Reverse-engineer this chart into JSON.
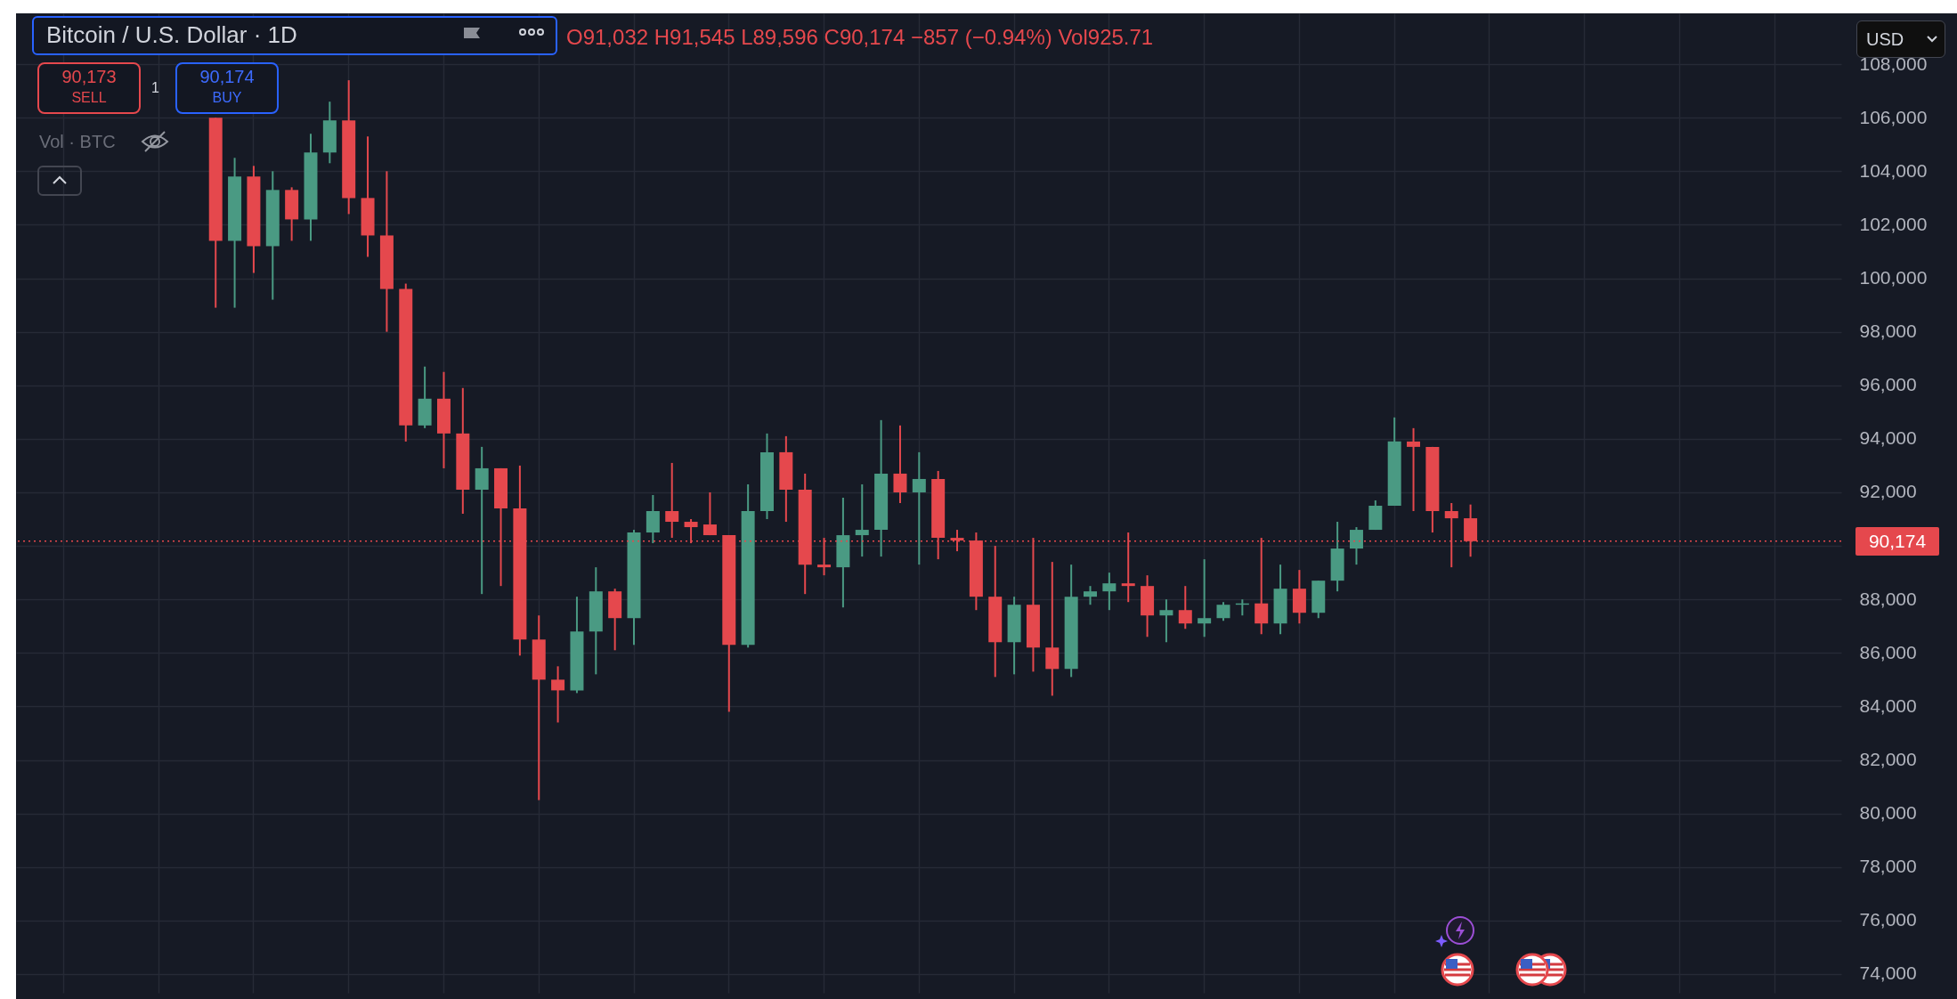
{
  "chart_data": {
    "type": "candlestick",
    "title": "Bitcoin / U.S. Dollar · 1D",
    "subtitle": "O91,032 H91,545 L89,596 C90,174 −857 (−0.94%) Vol925.71",
    "annotations": [
      "90,173",
      "SELL",
      "1",
      "90,174",
      "BUY",
      "Vol · BTC",
      "USD"
    ],
    "categories": [
      null,
      null,
      null,
      null,
      null,
      null,
      null,
      null,
      null,
      null,
      null,
      null,
      null,
      null,
      null,
      null,
      null,
      null,
      null,
      null,
      null,
      null,
      null,
      null,
      null,
      null,
      null,
      null,
      null,
      null,
      null,
      null,
      null,
      null,
      null,
      null,
      null,
      null,
      null,
      null,
      null,
      null,
      null,
      null,
      null,
      null,
      null,
      null,
      null,
      null,
      null,
      null,
      null,
      null,
      null,
      null,
      null,
      null,
      null,
      null,
      null,
      null,
      null,
      null,
      null,
      null,
      null,
      null,
      null,
      null,
      null,
      null,
      null,
      null,
      null,
      null,
      null,
      null,
      null,
      null,
      null,
      null,
      null,
      null,
      null,
      null,
      null,
      null,
      null,
      null,
      null,
      null,
      null,
      null,
      null,
      null
    ],
    "ohlc": [
      null,
      null,
      null,
      null,
      null,
      null,
      null,
      null,
      null,
      null,
      [
        106000,
        106000,
        98900,
        101400
      ],
      [
        101400,
        104500,
        98900,
        103800
      ],
      [
        103800,
        104200,
        100200,
        101200
      ],
      [
        101200,
        104000,
        99200,
        103300
      ],
      [
        103300,
        103400,
        101400,
        102200
      ],
      [
        102200,
        105400,
        101400,
        104700
      ],
      [
        104700,
        106600,
        104300,
        105900
      ],
      [
        105900,
        107400,
        102400,
        103000
      ],
      [
        103000,
        105300,
        100800,
        101600
      ],
      [
        101600,
        104000,
        98000,
        99600
      ],
      [
        99600,
        99800,
        93900,
        94500
      ],
      [
        94500,
        96700,
        94400,
        95500
      ],
      [
        95500,
        96500,
        92900,
        94200
      ],
      [
        94200,
        95900,
        91200,
        92100
      ],
      [
        92100,
        93700,
        88200,
        92900
      ],
      [
        92900,
        92900,
        88500,
        91400
      ],
      [
        91400,
        93000,
        85900,
        86500
      ],
      [
        86500,
        87400,
        80500,
        85000
      ],
      [
        85000,
        85500,
        83400,
        84600
      ],
      [
        84600,
        88100,
        84500,
        86800
      ],
      [
        86800,
        89200,
        85200,
        88300
      ],
      [
        88300,
        88400,
        86100,
        87300
      ],
      [
        87300,
        90600,
        86300,
        90500
      ],
      [
        90500,
        91900,
        90100,
        91300
      ],
      [
        91300,
        93100,
        90300,
        90900
      ],
      [
        90900,
        91000,
        90100,
        90700
      ],
      [
        90800,
        92000,
        90400,
        90400
      ],
      [
        90400,
        90400,
        83800,
        86300
      ],
      [
        86300,
        92300,
        86200,
        91300
      ],
      [
        91300,
        94200,
        91000,
        93500
      ],
      [
        93500,
        94100,
        90900,
        92100
      ],
      [
        92100,
        92700,
        88200,
        89300
      ],
      [
        89300,
        90300,
        88900,
        89200
      ],
      [
        89200,
        91800,
        87700,
        90400
      ],
      [
        90400,
        92300,
        89600,
        90600
      ],
      [
        90600,
        94700,
        89600,
        92700
      ],
      [
        92700,
        94500,
        91600,
        92000
      ],
      [
        92000,
        93500,
        89300,
        92500
      ],
      [
        92500,
        92800,
        89500,
        90300
      ],
      [
        90300,
        90600,
        89800,
        90200
      ],
      [
        90200,
        90500,
        87600,
        88100
      ],
      [
        88100,
        90000,
        85100,
        86400
      ],
      [
        86400,
        88100,
        85200,
        87800
      ],
      [
        87800,
        90300,
        85300,
        86200
      ],
      [
        86200,
        89400,
        84400,
        85400
      ],
      [
        85400,
        89300,
        85100,
        88100
      ],
      [
        88100,
        88500,
        87800,
        88300
      ],
      [
        88300,
        89000,
        87600,
        88600
      ],
      [
        88600,
        90500,
        87900,
        88500
      ],
      [
        88500,
        88900,
        86600,
        87400
      ],
      [
        87400,
        88000,
        86400,
        87600
      ],
      [
        87600,
        88500,
        86900,
        87100
      ],
      [
        87100,
        89500,
        86600,
        87300
      ],
      [
        87300,
        87900,
        87200,
        87800
      ],
      [
        87800,
        88000,
        87400,
        87850
      ],
      [
        87850,
        90300,
        86700,
        87100
      ],
      [
        87100,
        89300,
        86700,
        88400
      ],
      [
        88400,
        89100,
        87100,
        87500
      ],
      [
        87500,
        88700,
        87300,
        88700
      ],
      [
        88700,
        90900,
        88300,
        89900
      ],
      [
        89900,
        90700,
        89300,
        90600
      ],
      [
        90600,
        91700,
        90600,
        91500
      ],
      [
        91500,
        94800,
        91500,
        93900
      ],
      [
        93900,
        94400,
        91300,
        93700
      ],
      [
        93700,
        93700,
        90500,
        91300
      ],
      [
        91300,
        91600,
        89200,
        91031
      ],
      [
        91032,
        91545,
        89596,
        90174
      ],
      null,
      null,
      null,
      null,
      null,
      null,
      null,
      null,
      null,
      null,
      null,
      null,
      null,
      null,
      null,
      null,
      null,
      null,
      null
    ],
    "colors": [
      null,
      null,
      null,
      null,
      null,
      null,
      null,
      null,
      null,
      null,
      "#e5484d",
      "#4a9a83",
      "#e5484d",
      "#4a9a83",
      "#e5484d",
      "#4a9a83",
      "#4a9a83",
      "#e5484d",
      "#e5484d",
      "#e5484d",
      "#e5484d",
      "#4a9a83",
      "#e5484d",
      "#e5484d",
      "#4a9a83",
      "#e5484d",
      "#e5484d",
      "#e5484d",
      "#e5484d",
      "#4a9a83",
      "#4a9a83",
      "#e5484d",
      "#4a9a83",
      "#4a9a83",
      "#e5484d",
      "#e5484d",
      "#e5484d",
      "#e5484d",
      "#4a9a83",
      "#4a9a83",
      "#e5484d",
      "#e5484d",
      "#e5484d",
      "#4a9a83",
      "#4a9a83",
      "#4a9a83",
      "#e5484d",
      "#4a9a83",
      "#e5484d",
      "#e5484d",
      "#e5484d",
      "#e5484d",
      "#4a9a83",
      "#e5484d",
      "#e5484d",
      "#4a9a83",
      "#4a9a83",
      "#4a9a83",
      "#e5484d",
      "#e5484d",
      "#4a9a83",
      "#e5484d",
      "#4a9a83",
      "#4a9a83",
      "#4a9a83",
      "#e5484d",
      "#4a9a83",
      "#e5484d",
      "#4a9a83",
      "#4a9a83",
      "#4a9a83",
      "#4a9a83",
      "#4a9a83",
      "#e5484d",
      "#e5484d",
      "#e5484d",
      "#e5484d",
      null,
      null,
      null,
      null,
      null,
      null,
      null,
      null,
      null,
      null,
      null,
      null,
      null,
      null,
      null,
      null,
      null,
      null,
      null
    ],
    "ylim": [
      73300,
      109900
    ],
    "yticks": [
      {
        "value": 74000,
        "label": "74,000"
      },
      {
        "value": 76000,
        "label": "76,000"
      },
      {
        "value": 78000,
        "label": "78,000"
      },
      {
        "value": 80000,
        "label": "80,000"
      },
      {
        "value": 82000,
        "label": "82,000"
      },
      {
        "value": 84000,
        "label": "84,000"
      },
      {
        "value": 86000,
        "label": "86,000"
      },
      {
        "value": 88000,
        "label": "88,000"
      },
      {
        "value": 90000,
        "label": null
      },
      {
        "value": 92000,
        "label": "92,000"
      },
      {
        "value": 94000,
        "label": "94,000"
      },
      {
        "value": 96000,
        "label": "96,000"
      },
      {
        "value": 98000,
        "label": "98,000"
      },
      {
        "value": 100000,
        "label": "100,000"
      },
      {
        "value": 102000,
        "label": "102,000"
      },
      {
        "value": 104000,
        "label": "104,000"
      },
      {
        "value": 106000,
        "label": "106,000"
      },
      {
        "value": 108000,
        "label": "108,000"
      }
    ],
    "tick_labels": "y",
    "grid": true,
    "ref_lines": [
      {
        "axis": "y",
        "value": 90174,
        "label": "90,174",
        "color": "#e5484d",
        "line_style": "dotted"
      }
    ]
  }
}
